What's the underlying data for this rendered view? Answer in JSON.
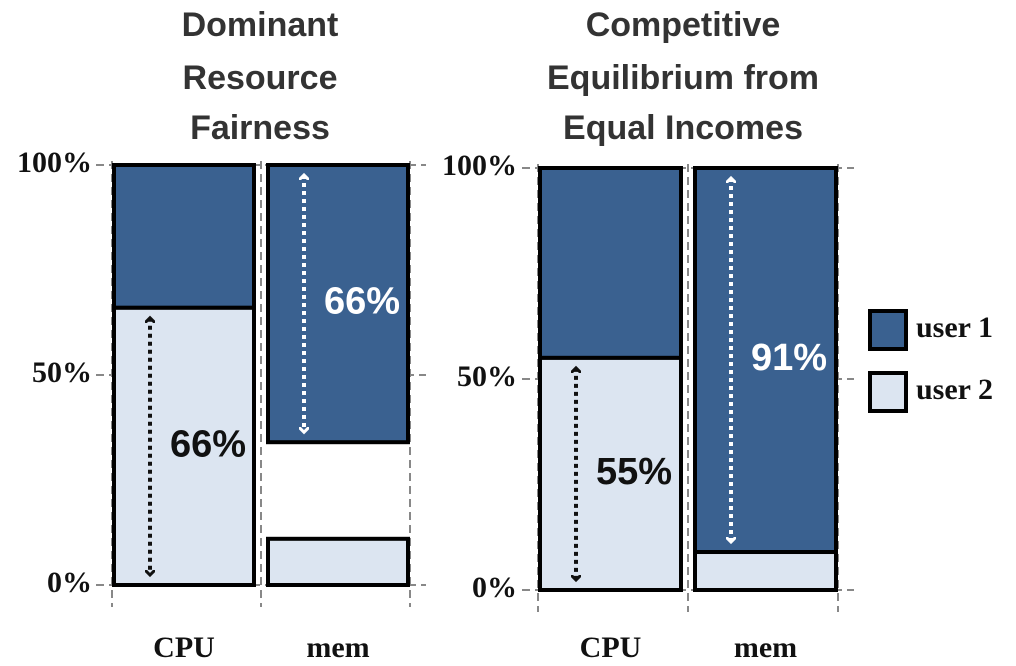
{
  "chart_data": [
    {
      "type": "bar",
      "title": [
        "Dominant",
        "Resource",
        "Fairness"
      ],
      "categories": [
        "CPU",
        "mem"
      ],
      "series": [
        {
          "name": "user 1",
          "color": "#3a6190",
          "values": [
            34,
            66
          ],
          "value_labels": [
            null,
            "66%"
          ]
        },
        {
          "name": "user 2",
          "color": "#dce5f1",
          "values": [
            66,
            11
          ],
          "value_labels": [
            "66%",
            null
          ]
        }
      ],
      "ylim": [
        0,
        100
      ],
      "yticks": [
        {
          "value": 0,
          "label": "0%"
        },
        {
          "value": 50,
          "label": "50%"
        },
        {
          "value": 100,
          "label": "100%"
        }
      ]
    },
    {
      "type": "bar",
      "title": [
        "Competitive",
        "Equilibrium from",
        "Equal Incomes"
      ],
      "categories": [
        "CPU",
        "mem"
      ],
      "series": [
        {
          "name": "user 1",
          "color": "#3a6190",
          "values": [
            45,
            91
          ],
          "value_labels": [
            null,
            "91%"
          ]
        },
        {
          "name": "user 2",
          "color": "#dce5f1",
          "values": [
            55,
            9
          ],
          "value_labels": [
            "55%",
            null
          ]
        }
      ],
      "ylim": [
        0,
        100
      ],
      "yticks": [
        {
          "value": 0,
          "label": "0%"
        },
        {
          "value": 50,
          "label": "50%"
        },
        {
          "value": 100,
          "label": "100%"
        }
      ]
    }
  ]
}
